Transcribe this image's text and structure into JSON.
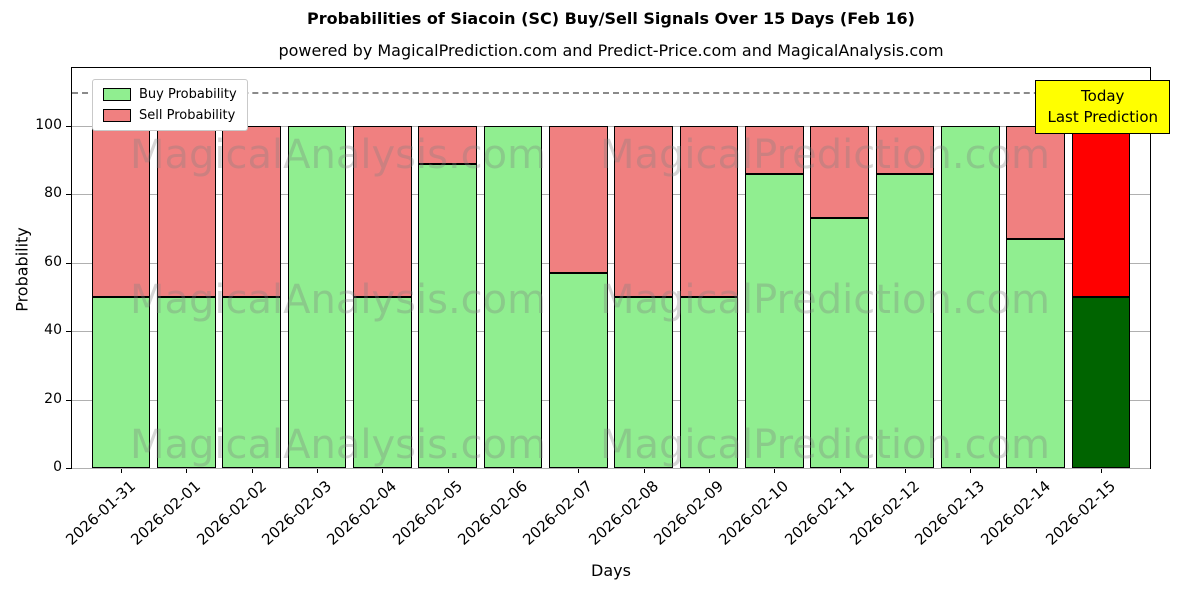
{
  "title": "Probabilities of Siacoin (SC) Buy/Sell Signals Over 15 Days (Feb 16)",
  "subtitle": "powered by MagicalPrediction.com and Predict-Price.com and MagicalAnalysis.com",
  "watermarks": [
    "MagicalAnalysis.com",
    "MagicalPrediction.com"
  ],
  "annotation": {
    "line1": "Today",
    "line2": "Last Prediction",
    "bg_color": "#ffff00",
    "border_color": "#000000"
  },
  "legend": [
    {
      "label": "Buy Probability",
      "color": "#90ee90"
    },
    {
      "label": "Sell Probability",
      "color": "#f08080"
    }
  ],
  "colors": {
    "buy": "#90ee90",
    "sell": "#f08080",
    "buy_today": "#006400",
    "sell_today": "#ff0000",
    "grid": "#b0b0b0",
    "dashed_line": "#8a8a8a",
    "watermark": "rgba(128,128,128,0.32)",
    "bar_edge": "#000000"
  },
  "chart_data": {
    "type": "bar",
    "stacked": true,
    "title": "Probabilities of Siacoin (SC) Buy/Sell Signals Over 15 Days (Feb 16)",
    "xlabel": "Days",
    "ylabel": "Probability",
    "ylim": [
      0,
      117
    ],
    "yticks": [
      0,
      20,
      40,
      60,
      80,
      100
    ],
    "dashed_line_y": 110,
    "grid": true,
    "legend_position": "upper left",
    "categories": [
      "2026-01-31",
      "2026-02-01",
      "2026-02-02",
      "2026-02-03",
      "2026-02-04",
      "2026-02-05",
      "2026-02-06",
      "2026-02-07",
      "2026-02-08",
      "2026-02-09",
      "2026-02-10",
      "2026-02-11",
      "2026-02-12",
      "2026-02-13",
      "2026-02-14",
      "2026-02-15"
    ],
    "series": [
      {
        "name": "Buy Probability",
        "color": "#90ee90",
        "today_color": "#006400",
        "values": [
          50,
          50,
          50,
          100,
          50,
          89,
          100,
          57,
          50,
          50,
          86,
          73,
          86,
          100,
          67,
          50
        ]
      },
      {
        "name": "Sell Probability",
        "color": "#f08080",
        "today_color": "#ff0000",
        "values": [
          50,
          50,
          50,
          0,
          50,
          11,
          0,
          43,
          50,
          50,
          14,
          27,
          14,
          0,
          33,
          50
        ]
      }
    ]
  }
}
